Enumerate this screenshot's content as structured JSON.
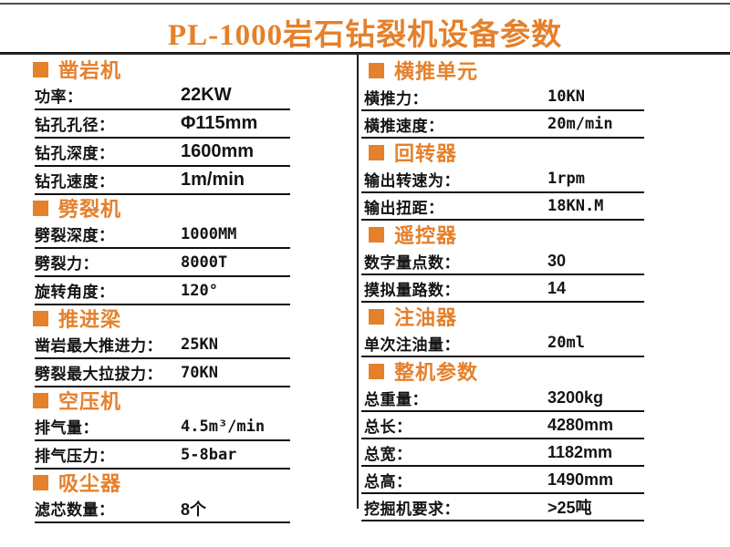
{
  "page": {
    "title": "PL-1000岩石钻裂机设备参数"
  },
  "colors": {
    "accent": "#E5802B",
    "text": "#141414",
    "rule": "#262626"
  },
  "columns": {
    "left": {
      "sections": [
        {
          "title": "凿岩机",
          "rows": [
            {
              "label": "功率：",
              "value": "22KW"
            },
            {
              "label": "钻孔孔径：",
              "value": "Φ115mm"
            },
            {
              "label": "钻孔深度：",
              "value": "1600mm"
            },
            {
              "label": "钻孔速度：",
              "value": "1m/min"
            }
          ]
        },
        {
          "title": "劈裂机",
          "rows": [
            {
              "label": "劈裂深度：",
              "value": "1000MM"
            },
            {
              "label": "劈裂力：",
              "value": "8000T"
            },
            {
              "label": "旋转角度：",
              "value": "120°"
            }
          ]
        },
        {
          "title": "推进梁",
          "rows": [
            {
              "label": "凿岩最大推进力：",
              "value": "25KN"
            },
            {
              "label": "劈裂最大拉拔力：",
              "value": "70KN"
            }
          ]
        },
        {
          "title": "空压机",
          "rows": [
            {
              "label": "排气量：",
              "value": "4.5m³/min"
            },
            {
              "label": "排气压力：",
              "value": "5-8bar"
            }
          ]
        },
        {
          "title": "吸尘器",
          "rows": [
            {
              "label": "滤芯数量：",
              "value": "8个"
            }
          ]
        }
      ]
    },
    "right": {
      "sections": [
        {
          "title": "横推单元",
          "rows": [
            {
              "label": "横推力：",
              "value": "10KN"
            },
            {
              "label": "横推速度：",
              "value": "20m/min"
            }
          ]
        },
        {
          "title": "回转器",
          "rows": [
            {
              "label": "输出转速为：",
              "value": "1rpm"
            },
            {
              "label": "输出扭距：",
              "value": "18KN.M"
            }
          ]
        },
        {
          "title": "遥控器",
          "rows": [
            {
              "label": "数字量点数：",
              "value": "30"
            },
            {
              "label": "摸拟量路数：",
              "value": "14"
            }
          ]
        },
        {
          "title": "注油器",
          "rows": [
            {
              "label": "单次注油量：",
              "value": "20ml"
            }
          ]
        },
        {
          "title": "整机参数",
          "rows": [
            {
              "label": "总重量：",
              "value": "3200kg"
            },
            {
              "label": "总长：",
              "value": "4280mm"
            },
            {
              "label": "总宽：",
              "value": "1182mm"
            },
            {
              "label": "总高：",
              "value": "1490mm"
            },
            {
              "label": "挖掘机要求：",
              "value": ">25吨"
            }
          ]
        }
      ]
    }
  }
}
